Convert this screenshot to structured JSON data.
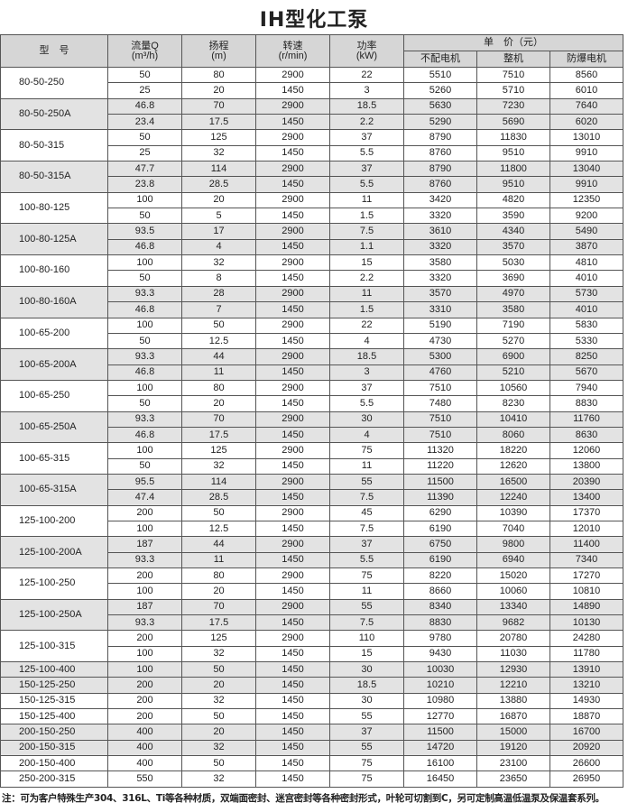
{
  "title": "IH型化工泵",
  "headers": {
    "model": "型　号",
    "flow": "流量Q",
    "flow_unit": "(m³/h)",
    "head": "扬程",
    "head_unit": "(m)",
    "speed": "转速",
    "speed_unit": "(r/min)",
    "power": "功率",
    "power_unit": "(kW)",
    "price": "单　价（元）",
    "price_no_motor": "不配电机",
    "price_complete": "整机",
    "price_explosion_proof": "防爆电机"
  },
  "groups": [
    {
      "model": "80-50-250",
      "shade": false,
      "rows": [
        [
          "50",
          "80",
          "2900",
          "22",
          "5510",
          "7510",
          "8560"
        ],
        [
          "25",
          "20",
          "1450",
          "3",
          "5260",
          "5710",
          "6010"
        ]
      ]
    },
    {
      "model": "80-50-250A",
      "shade": true,
      "rows": [
        [
          "46.8",
          "70",
          "2900",
          "18.5",
          "5630",
          "7230",
          "7640"
        ],
        [
          "23.4",
          "17.5",
          "1450",
          "2.2",
          "5290",
          "5690",
          "6020"
        ]
      ]
    },
    {
      "model": "80-50-315",
      "shade": false,
      "rows": [
        [
          "50",
          "125",
          "2900",
          "37",
          "8790",
          "11830",
          "13010"
        ],
        [
          "25",
          "32",
          "1450",
          "5.5",
          "8760",
          "9510",
          "9910"
        ]
      ]
    },
    {
      "model": "80-50-315A",
      "shade": true,
      "rows": [
        [
          "47.7",
          "114",
          "2900",
          "37",
          "8790",
          "11800",
          "13040"
        ],
        [
          "23.8",
          "28.5",
          "1450",
          "5.5",
          "8760",
          "9510",
          "9910"
        ]
      ]
    },
    {
      "model": "100-80-125",
      "shade": false,
      "rows": [
        [
          "100",
          "20",
          "2900",
          "11",
          "3420",
          "4820",
          "12350"
        ],
        [
          "50",
          "5",
          "1450",
          "1.5",
          "3320",
          "3590",
          "9200"
        ]
      ]
    },
    {
      "model": "100-80-125A",
      "shade": true,
      "rows": [
        [
          "93.5",
          "17",
          "2900",
          "7.5",
          "3610",
          "4340",
          "5490"
        ],
        [
          "46.8",
          "4",
          "1450",
          "1.1",
          "3320",
          "3570",
          "3870"
        ]
      ]
    },
    {
      "model": "100-80-160",
      "shade": false,
      "rows": [
        [
          "100",
          "32",
          "2900",
          "15",
          "3580",
          "5030",
          "4810"
        ],
        [
          "50",
          "8",
          "1450",
          "2.2",
          "3320",
          "3690",
          "4010"
        ]
      ]
    },
    {
      "model": "100-80-160A",
      "shade": true,
      "rows": [
        [
          "93.3",
          "28",
          "2900",
          "11",
          "3570",
          "4970",
          "5730"
        ],
        [
          "46.8",
          "7",
          "1450",
          "1.5",
          "3310",
          "3580",
          "4010"
        ]
      ]
    },
    {
      "model": "100-65-200",
      "shade": false,
      "rows": [
        [
          "100",
          "50",
          "2900",
          "22",
          "5190",
          "7190",
          "5830"
        ],
        [
          "50",
          "12.5",
          "1450",
          "4",
          "4730",
          "5270",
          "5330"
        ]
      ]
    },
    {
      "model": "100-65-200A",
      "shade": true,
      "rows": [
        [
          "93.3",
          "44",
          "2900",
          "18.5",
          "5300",
          "6900",
          "8250"
        ],
        [
          "46.8",
          "11",
          "1450",
          "3",
          "4760",
          "5210",
          "5670"
        ]
      ]
    },
    {
      "model": "100-65-250",
      "shade": false,
      "rows": [
        [
          "100",
          "80",
          "2900",
          "37",
          "7510",
          "10560",
          "7940"
        ],
        [
          "50",
          "20",
          "1450",
          "5.5",
          "7480",
          "8230",
          "8830"
        ]
      ]
    },
    {
      "model": "100-65-250A",
      "shade": true,
      "rows": [
        [
          "93.3",
          "70",
          "2900",
          "30",
          "7510",
          "10410",
          "11760"
        ],
        [
          "46.8",
          "17.5",
          "1450",
          "4",
          "7510",
          "8060",
          "8630"
        ]
      ]
    },
    {
      "model": "100-65-315",
      "shade": false,
      "rows": [
        [
          "100",
          "125",
          "2900",
          "75",
          "11320",
          "18220",
          "12060"
        ],
        [
          "50",
          "32",
          "1450",
          "11",
          "11220",
          "12620",
          "13800"
        ]
      ]
    },
    {
      "model": "100-65-315A",
      "shade": true,
      "rows": [
        [
          "95.5",
          "114",
          "2900",
          "55",
          "11500",
          "16500",
          "20390"
        ],
        [
          "47.4",
          "28.5",
          "1450",
          "7.5",
          "11390",
          "12240",
          "13400"
        ]
      ]
    },
    {
      "model": "125-100-200",
      "shade": false,
      "rows": [
        [
          "200",
          "50",
          "2900",
          "45",
          "6290",
          "10390",
          "17370"
        ],
        [
          "100",
          "12.5",
          "1450",
          "7.5",
          "6190",
          "7040",
          "12010"
        ]
      ]
    },
    {
      "model": "125-100-200A",
      "shade": true,
      "rows": [
        [
          "187",
          "44",
          "2900",
          "37",
          "6750",
          "9800",
          "11400"
        ],
        [
          "93.3",
          "11",
          "1450",
          "5.5",
          "6190",
          "6940",
          "7340"
        ]
      ]
    },
    {
      "model": "125-100-250",
      "shade": false,
      "rows": [
        [
          "200",
          "80",
          "2900",
          "75",
          "8220",
          "15020",
          "17270"
        ],
        [
          "100",
          "20",
          "1450",
          "11",
          "8660",
          "10060",
          "10810"
        ]
      ]
    },
    {
      "model": "125-100-250A",
      "shade": true,
      "rows": [
        [
          "187",
          "70",
          "2900",
          "55",
          "8340",
          "13340",
          "14890"
        ],
        [
          "93.3",
          "17.5",
          "1450",
          "7.5",
          "8830",
          "9682",
          "10130"
        ]
      ]
    },
    {
      "model": "125-100-315",
      "shade": false,
      "rows": [
        [
          "200",
          "125",
          "2900",
          "110",
          "9780",
          "20780",
          "24280"
        ],
        [
          "100",
          "32",
          "1450",
          "15",
          "9430",
          "11030",
          "11780"
        ]
      ]
    },
    {
      "model": "125-100-400",
      "shade": true,
      "rows": [
        [
          "100",
          "50",
          "1450",
          "30",
          "10030",
          "12930",
          "13910"
        ]
      ]
    },
    {
      "model": "150-125-250",
      "shade": true,
      "rows": [
        [
          "200",
          "20",
          "1450",
          "18.5",
          "10210",
          "12210",
          "13210"
        ]
      ]
    },
    {
      "model": "150-125-315",
      "shade": false,
      "rows": [
        [
          "200",
          "32",
          "1450",
          "30",
          "10980",
          "13880",
          "14930"
        ]
      ]
    },
    {
      "model": "150-125-400",
      "shade": false,
      "rows": [
        [
          "200",
          "50",
          "1450",
          "55",
          "12770",
          "16870",
          "18870"
        ]
      ]
    },
    {
      "model": "200-150-250",
      "shade": true,
      "rows": [
        [
          "400",
          "20",
          "1450",
          "37",
          "11500",
          "15000",
          "16700"
        ]
      ]
    },
    {
      "model": "200-150-315",
      "shade": true,
      "rows": [
        [
          "400",
          "32",
          "1450",
          "55",
          "14720",
          "19120",
          "20920"
        ]
      ]
    },
    {
      "model": "200-150-400",
      "shade": false,
      "rows": [
        [
          "400",
          "50",
          "1450",
          "75",
          "16100",
          "23100",
          "26600"
        ]
      ]
    },
    {
      "model": "250-200-315",
      "shade": false,
      "rows": [
        [
          "550",
          "32",
          "1450",
          "75",
          "16450",
          "23650",
          "26950"
        ]
      ]
    }
  ],
  "note": "注：可为客户特殊生产304、316L、Ti等各种材质，双端面密封、迷宫密封等各种密封形式，叶轮可切割到C，另可定制高温低温泵及保温套系列。"
}
